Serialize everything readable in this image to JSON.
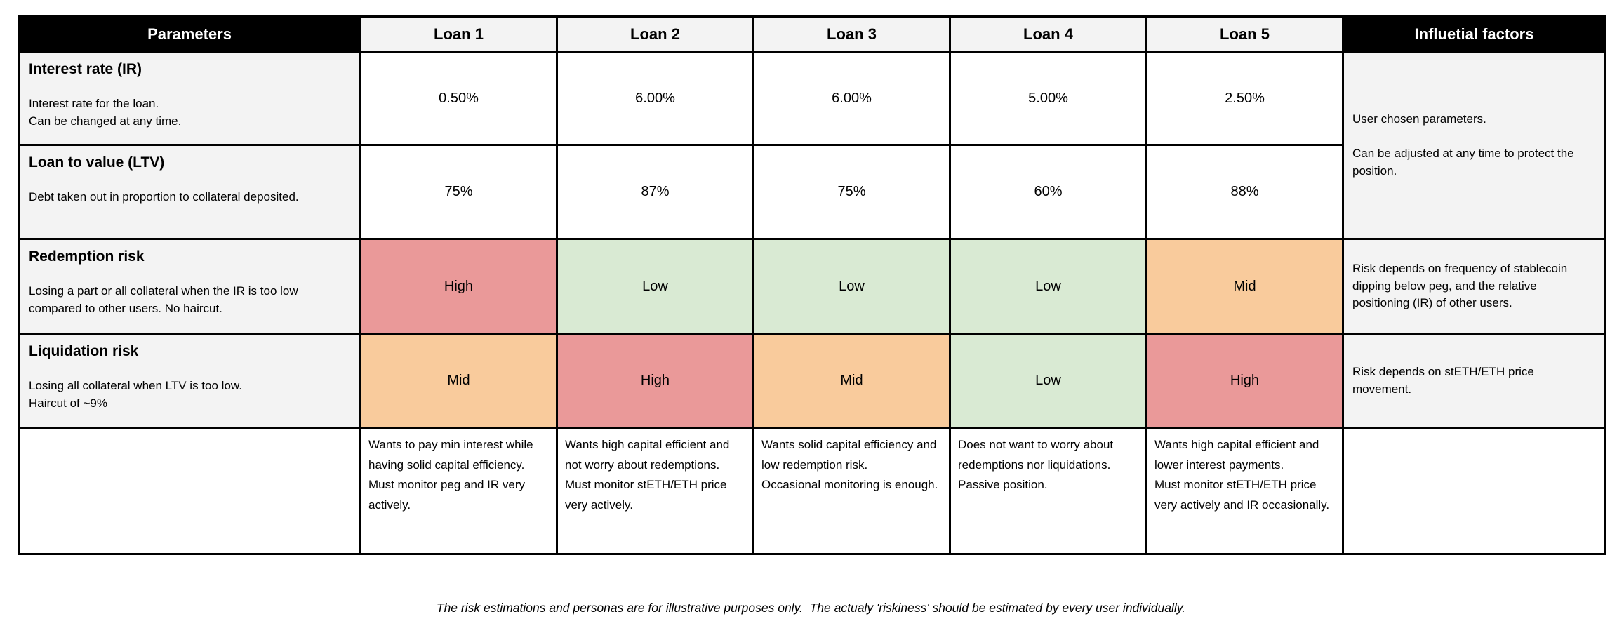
{
  "table": {
    "param_header": "Parameters",
    "loan_headers": [
      "Loan 1",
      "Loan 2",
      "Loan 3",
      "Loan 4",
      "Loan 5"
    ],
    "influential_header": "Influetial factors",
    "rows": [
      {
        "title": "Interest rate (IR)",
        "description": "Interest rate for the loan.\nCan be changed at any time.",
        "values": [
          "0.50%",
          "6.00%",
          "6.00%",
          "5.00%",
          "2.50%"
        ]
      },
      {
        "title": "Loan to value (LTV)",
        "description": "Debt taken out in proportion to collateral deposited.",
        "values": [
          "75%",
          "87%",
          "75%",
          "60%",
          "88%"
        ]
      },
      {
        "title": "Redemption risk",
        "description": "Losing a part or all collateral when the IR is too low compared to other users. No haircut.",
        "values": [
          "High",
          "Low",
          "Low",
          "Low",
          "Mid"
        ],
        "influential": "Risk depends on frequency of stablecoin dipping below peg, and the relative positioning (IR) of other users."
      },
      {
        "title": "Liquidation risk",
        "description": "Losing all collateral when LTV is too low.\nHaircut of ~9%",
        "values": [
          "Mid",
          "High",
          "Mid",
          "Low",
          "High"
        ],
        "influential": "Risk depends on stETH/ETH price movement."
      }
    ],
    "influential_top": "User chosen parameters.\n\nCan be adjusted at any time to protect the position.",
    "personas": [
      "Wants to pay min interest while having solid capital efficiency.\nMust monitor peg and IR very actively.",
      "Wants high capital efficient and not worry about redemptions.\nMust monitor stETH/ETH price very actively.",
      "Wants solid capital efficiency and low redemption risk.\nOccasional monitoring is enough.",
      "Does not want to worry about redemptions nor liquidations.\nPassive position.",
      "Wants high capital efficient and lower interest payments.\nMust monitor stETH/ETH price very actively and IR occasionally."
    ]
  },
  "footer": "The risk estimations and personas are for illustrative purposes only.  The actualy 'riskiness' should be estimated by every user individually.",
  "colors": {
    "high": "#ea9999",
    "mid": "#f9cb9c",
    "low": "#d9ead3",
    "header_bg": "#000000",
    "header_text": "#ffffff",
    "label_bg": "#f3f3f3"
  }
}
